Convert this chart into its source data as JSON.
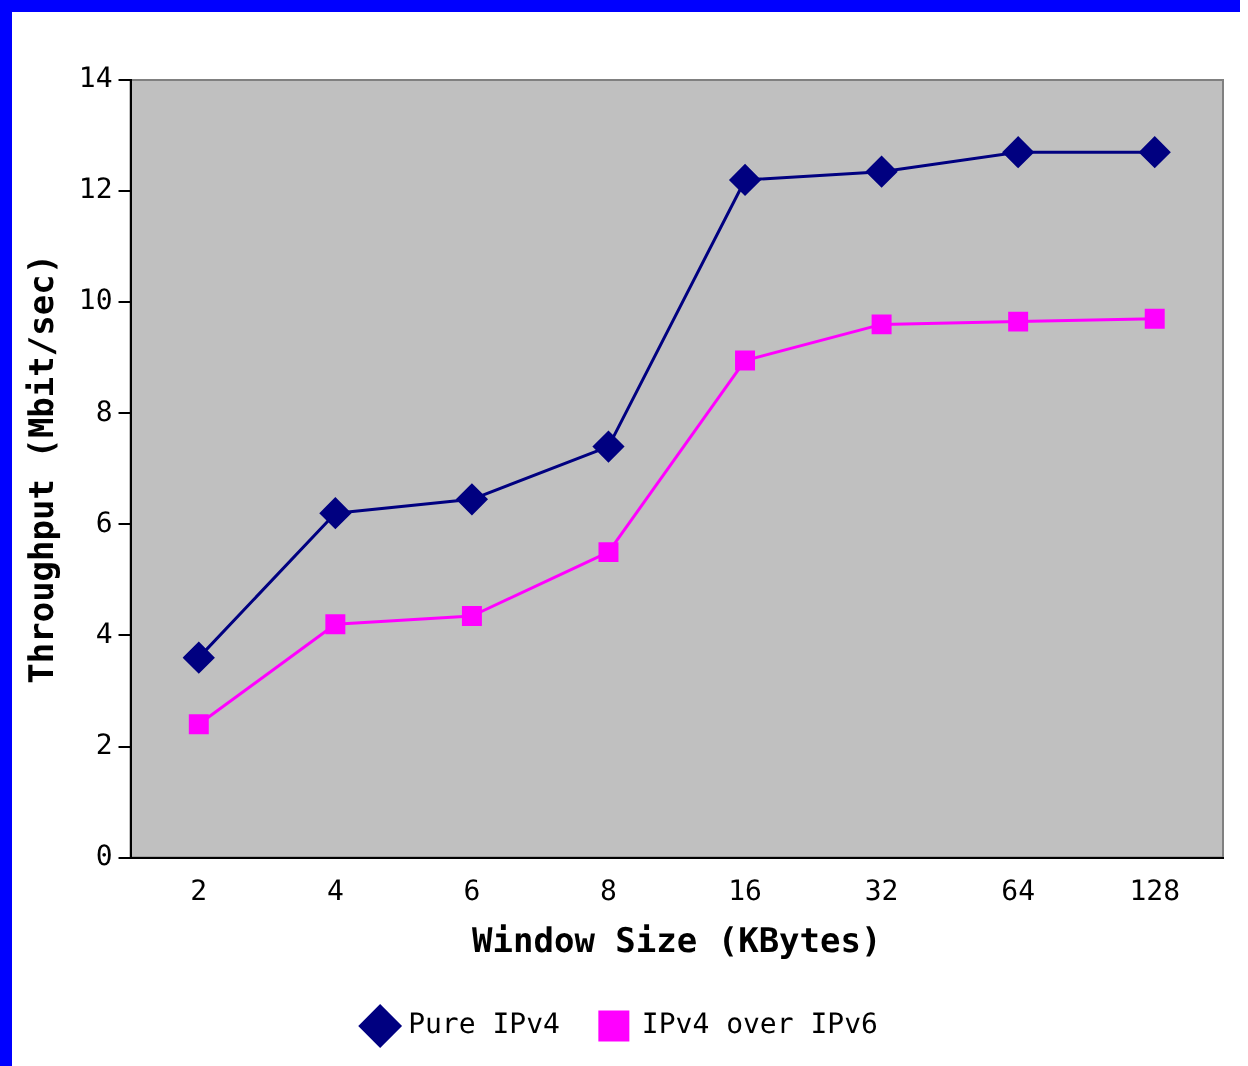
{
  "chart_data": {
    "type": "line",
    "xlabel": "Window Size (KBytes)",
    "ylabel": "Throughput (Mbit/sec)",
    "categories": [
      "2",
      "4",
      "6",
      "8",
      "16",
      "32",
      "64",
      "128"
    ],
    "series": [
      {
        "name": "Pure IPv4",
        "color": "#000080",
        "marker": "diamond",
        "values": [
          3.6,
          6.2,
          6.45,
          7.4,
          12.2,
          12.35,
          12.7,
          12.7
        ]
      },
      {
        "name": "IPv4 over IPv6",
        "color": "#ff00ff",
        "marker": "square",
        "values": [
          2.4,
          4.2,
          4.35,
          5.5,
          8.95,
          9.6,
          9.65,
          9.7
        ]
      }
    ],
    "ylim": [
      0,
      14
    ],
    "yticks": [
      0,
      2,
      4,
      6,
      8,
      10,
      12,
      14
    ],
    "grid": false,
    "legend": "bottom"
  }
}
